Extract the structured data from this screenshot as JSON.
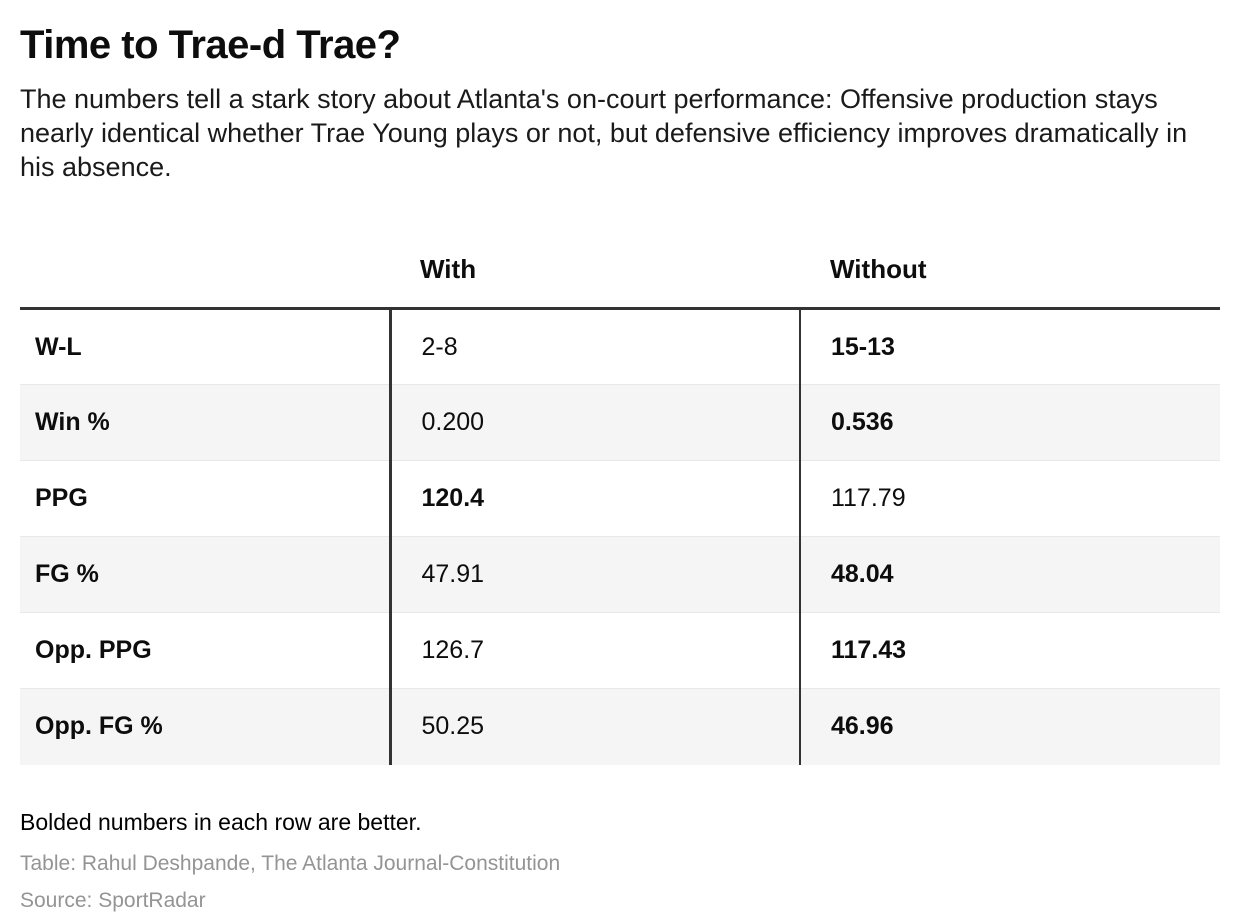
{
  "chart_data": {
    "type": "table",
    "title": "Time to Trae-d Trae?",
    "subtitle": "The numbers tell a stark story about Atlanta's on-court performance: Offensive production stays nearly identical whether Trae Young plays or not, but defensive efficiency improves dramatically in his absence.",
    "columns": [
      "With",
      "Without"
    ],
    "rows": [
      {
        "label": "W-L",
        "values": [
          "2-8",
          "15-13"
        ],
        "bold": [
          false,
          true
        ]
      },
      {
        "label": "Win %",
        "values": [
          "0.200",
          "0.536"
        ],
        "bold": [
          false,
          true
        ]
      },
      {
        "label": "PPG",
        "values": [
          "120.4",
          "117.79"
        ],
        "bold": [
          true,
          false
        ]
      },
      {
        "label": "FG %",
        "values": [
          "47.91",
          "48.04"
        ],
        "bold": [
          false,
          true
        ]
      },
      {
        "label": "Opp. PPG",
        "values": [
          "126.7",
          "117.43"
        ],
        "bold": [
          false,
          true
        ]
      },
      {
        "label": "Opp. FG %",
        "values": [
          "50.25",
          "46.96"
        ],
        "bold": [
          false,
          true
        ]
      }
    ],
    "note": "Bolded numbers in each row are better.",
    "credit": "Table: Rahul Deshpande, The Atlanta Journal-Constitution",
    "source": "Source: SportRadar",
    "layout_hints": {
      "striped_rows": "even rows shaded",
      "bold_meaning": "better value in each row is bold"
    }
  },
  "colors": {
    "text": "#1a1a1a",
    "border_dark": "#333333",
    "row_stripe": "#f5f5f5",
    "row_separator": "#e8e8e8",
    "credit_gray": "#949494"
  }
}
